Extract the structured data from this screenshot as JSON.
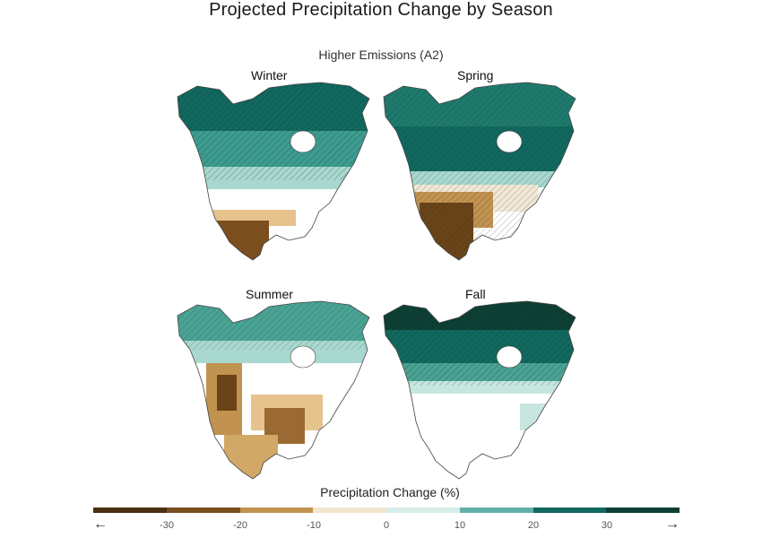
{
  "title": "Projected Precipitation Change by Season",
  "subtitle": "Higher Emissions (A2)",
  "panels": [
    {
      "label": "Winter"
    },
    {
      "label": "Spring"
    },
    {
      "label": "Summer"
    },
    {
      "label": "Fall"
    }
  ],
  "legend": {
    "title": "Precipitation Change (%)",
    "ticks": [
      "-30",
      "-20",
      "-10",
      "0",
      "10",
      "20",
      "30"
    ],
    "colors": [
      "#4a3011",
      "#7a4e1d",
      "#c29250",
      "#f3e6cf",
      "#d6ede8",
      "#64b0a8",
      "#11685e",
      "#0d3f35"
    ],
    "left_arrow": "←",
    "right_arrow": "→"
  },
  "colors": {
    "dark_teal": "#0d4a40",
    "teal": "#2f8f82",
    "mid_teal": "#5fb0a3",
    "light_teal": "#c8e6e0",
    "pale": "#f2e7d4",
    "tan": "#d2a866",
    "brown": "#9a6a32",
    "dark_brown": "#5a3a16",
    "outline": "#444444"
  }
}
